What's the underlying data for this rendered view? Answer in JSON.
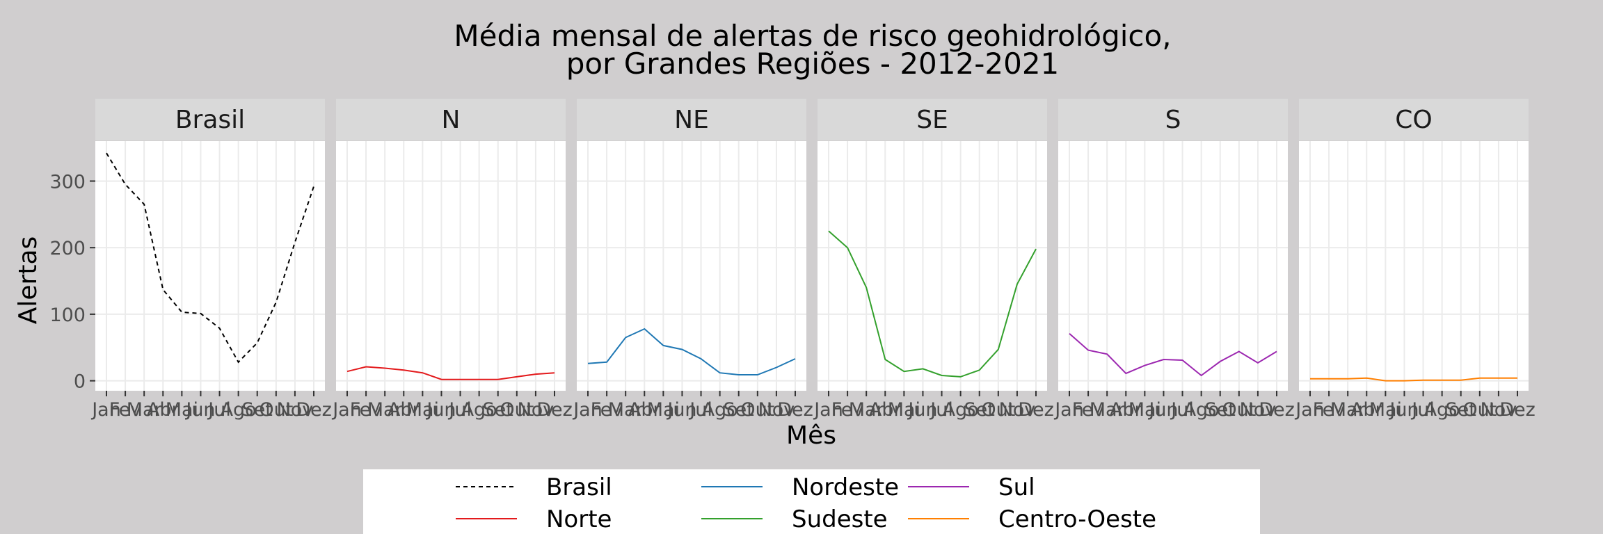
{
  "chart_data": {
    "type": "line",
    "title_lines": [
      "Média mensal de alertas de risco geohidrológico,",
      "por Grandes Regiões - 2012-2021"
    ],
    "xlabel": "Mês",
    "ylabel": "Alertas",
    "ylim": [
      -15,
      360
    ],
    "yticks": [
      0,
      100,
      200,
      300
    ],
    "grid": true,
    "legend_position": "bottom",
    "categories": [
      "Jan",
      "Fev",
      "Mar",
      "Abr",
      "Mai",
      "Jun",
      "Jul",
      "Ago",
      "Set",
      "Out",
      "Nov",
      "Dez"
    ],
    "panels": [
      {
        "label": "Brasil",
        "series": "Brasil"
      },
      {
        "label": "N",
        "series": "Norte"
      },
      {
        "label": "NE",
        "series": "Nordeste"
      },
      {
        "label": "SE",
        "series": "Sudeste"
      },
      {
        "label": "S",
        "series": "Sul"
      },
      {
        "label": "CO",
        "series": "Centro-Oeste"
      }
    ],
    "series": [
      {
        "name": "Brasil",
        "color": "#000000",
        "dashed": true,
        "values": [
          342,
          295,
          265,
          137,
          103,
          101,
          79,
          28,
          57,
          118,
          208,
          292
        ]
      },
      {
        "name": "Norte",
        "color": "#E31A1C",
        "dashed": false,
        "values": [
          14,
          21,
          19,
          16,
          12,
          2,
          2,
          2,
          2,
          6,
          10,
          12
        ]
      },
      {
        "name": "Nordeste",
        "color": "#1F78B4",
        "dashed": false,
        "values": [
          26,
          28,
          65,
          78,
          53,
          47,
          33,
          12,
          9,
          9,
          20,
          33
        ]
      },
      {
        "name": "Sudeste",
        "color": "#33A02C",
        "dashed": false,
        "values": [
          225,
          200,
          140,
          32,
          14,
          18,
          8,
          6,
          16,
          47,
          145,
          198
        ]
      },
      {
        "name": "Sul",
        "color": "#9C27B0",
        "dashed": false,
        "values": [
          71,
          46,
          40,
          11,
          23,
          32,
          31,
          8,
          29,
          44,
          27,
          44
        ]
      },
      {
        "name": "Centro-Oeste",
        "color": "#FF7F00",
        "dashed": false,
        "values": [
          3,
          3,
          3,
          4,
          0,
          0,
          1,
          1,
          1,
          4,
          4,
          4
        ]
      }
    ],
    "legend_order": [
      "Brasil",
      "Nordeste",
      "Sul",
      "Norte",
      "Sudeste",
      "Centro-Oeste"
    ]
  }
}
